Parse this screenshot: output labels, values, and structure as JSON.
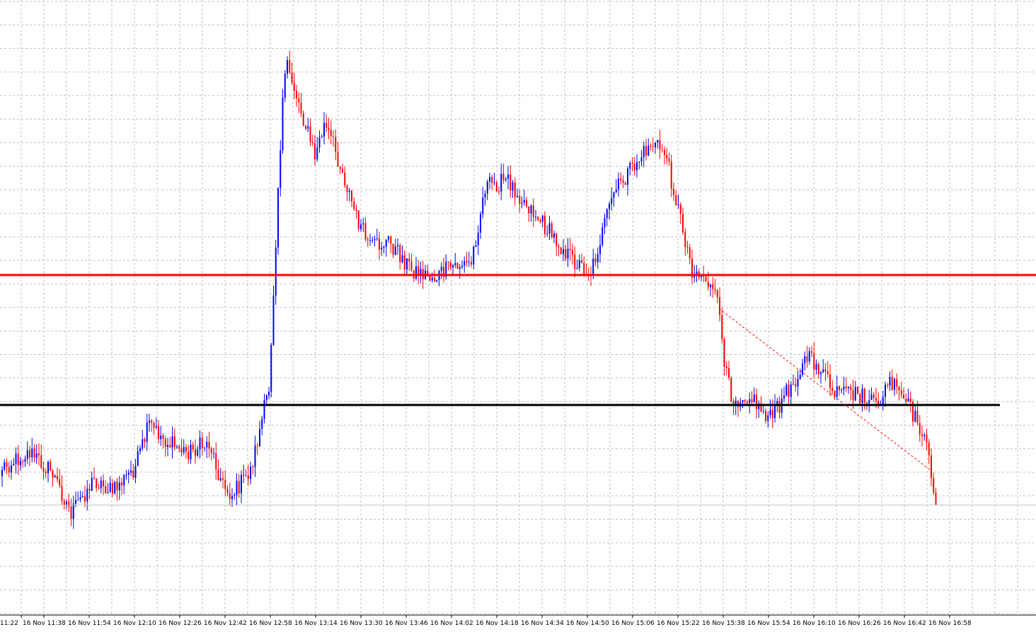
{
  "chart_data": {
    "type": "candlestick",
    "time_labels": [
      "11:22",
      "16 Nov 11:38",
      "16 Nov 11:54",
      "16 Nov 12:10",
      "16 Nov 12:26",
      "16 Nov 12:42",
      "16 Nov 12:58",
      "16 Nov 13:14",
      "16 Nov 13:30",
      "16 Nov 13:46",
      "16 Nov 14:02",
      "16 Nov 14:18",
      "16 Nov 14:34",
      "16 Nov 14:50",
      "16 Nov 15:06",
      "16 Nov 15:22",
      "16 Nov 15:38",
      "16 Nov 15:54",
      "16 Nov 16:10",
      "16 Nov 16:26",
      "16 Nov 16:42",
      "16 Nov 16:58"
    ],
    "bull_color": "#0000ff",
    "bear_color": "#ff0000",
    "grid": true,
    "grid_color": "#c0c0c0",
    "horizontal_lines": [
      {
        "name": "red-level",
        "price": 0.445,
        "color": "#ff0000"
      },
      {
        "name": "black-level",
        "price": 0.658,
        "color": "#000000"
      }
    ],
    "trendline": {
      "color": "#ff0000",
      "style": "dashed",
      "from": {
        "bar": 312,
        "price": 0.5
      },
      "to": {
        "bar": 404,
        "price": 0.765
      }
    },
    "price_scale": {
      "min": 0.0,
      "max": 1.0,
      "note": "normalized price units (no axis labels visible)"
    },
    "waypoints": [
      [
        0,
        0.76
      ],
      [
        12,
        0.735
      ],
      [
        22,
        0.77
      ],
      [
        30,
        0.835
      ],
      [
        40,
        0.78
      ],
      [
        48,
        0.8
      ],
      [
        58,
        0.76
      ],
      [
        64,
        0.69
      ],
      [
        72,
        0.72
      ],
      [
        80,
        0.735
      ],
      [
        90,
        0.72
      ],
      [
        96,
        0.79
      ],
      [
        100,
        0.805
      ],
      [
        108,
        0.765
      ],
      [
        112,
        0.7
      ],
      [
        116,
        0.63
      ],
      [
        118,
        0.47
      ],
      [
        120,
        0.3
      ],
      [
        122,
        0.16
      ],
      [
        124,
        0.1
      ],
      [
        128,
        0.15
      ],
      [
        132,
        0.2
      ],
      [
        136,
        0.25
      ],
      [
        140,
        0.2
      ],
      [
        144,
        0.23
      ],
      [
        150,
        0.3
      ],
      [
        154,
        0.35
      ],
      [
        160,
        0.4
      ],
      [
        168,
        0.39
      ],
      [
        178,
        0.435
      ],
      [
        188,
        0.45
      ],
      [
        196,
        0.43
      ],
      [
        204,
        0.425
      ],
      [
        210,
        0.3
      ],
      [
        220,
        0.29
      ],
      [
        236,
        0.365
      ],
      [
        248,
        0.42
      ],
      [
        256,
        0.44
      ],
      [
        266,
        0.31
      ],
      [
        272,
        0.28
      ],
      [
        282,
        0.23
      ],
      [
        288,
        0.24
      ],
      [
        300,
        0.435
      ],
      [
        306,
        0.45
      ],
      [
        312,
        0.5
      ],
      [
        314,
        0.6
      ],
      [
        318,
        0.65
      ],
      [
        324,
        0.64
      ],
      [
        334,
        0.68
      ],
      [
        344,
        0.62
      ],
      [
        350,
        0.58
      ],
      [
        356,
        0.6
      ],
      [
        362,
        0.64
      ],
      [
        372,
        0.64
      ],
      [
        380,
        0.66
      ],
      [
        386,
        0.62
      ],
      [
        394,
        0.66
      ],
      [
        400,
        0.7
      ],
      [
        404,
        0.765
      ],
      [
        406,
        0.822
      ]
    ]
  }
}
